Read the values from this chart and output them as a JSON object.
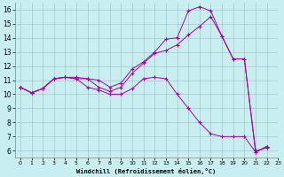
{
  "xlabel": "Windchill (Refroidissement éolien,°C)",
  "xlim": [
    -0.5,
    23
  ],
  "ylim": [
    5.5,
    16.5
  ],
  "xticks": [
    0,
    1,
    2,
    3,
    4,
    5,
    6,
    7,
    8,
    9,
    10,
    11,
    12,
    13,
    14,
    15,
    16,
    17,
    18,
    19,
    20,
    21,
    22,
    23
  ],
  "yticks": [
    6,
    7,
    8,
    9,
    10,
    11,
    12,
    13,
    14,
    15,
    16
  ],
  "bg_color": "#c8eef0",
  "line_color": "#aa00aa",
  "line1_x": [
    0,
    1,
    2,
    3,
    4,
    5,
    6,
    7,
    8,
    9,
    10,
    11,
    12,
    13,
    14,
    15,
    16,
    17,
    18,
    19,
    20,
    21,
    22
  ],
  "line1_y": [
    10.5,
    10.1,
    10.4,
    11.1,
    11.2,
    11.1,
    10.5,
    10.3,
    10.0,
    10.0,
    10.4,
    11.1,
    11.2,
    11.1,
    10.0,
    9.0,
    8.0,
    7.2,
    7.0,
    7.0,
    7.0,
    5.9,
    6.3
  ],
  "line2_x": [
    0,
    1,
    2,
    3,
    4,
    5,
    6,
    7,
    8,
    9,
    10,
    11,
    12,
    13,
    14,
    15,
    16,
    17,
    18,
    19,
    20,
    21,
    22
  ],
  "line2_y": [
    10.5,
    10.1,
    10.4,
    11.1,
    11.2,
    11.1,
    11.1,
    11.0,
    10.5,
    10.8,
    11.8,
    12.3,
    13.0,
    13.9,
    14.0,
    15.9,
    16.2,
    15.9,
    14.1,
    12.5,
    12.5,
    5.9,
    6.3
  ],
  "line3_x": [
    0,
    1,
    2,
    3,
    4,
    5,
    6,
    7,
    8,
    9,
    10,
    11,
    12,
    13,
    14,
    15,
    16,
    17,
    18,
    19,
    20,
    21,
    22
  ],
  "line3_y": [
    10.5,
    10.1,
    10.4,
    11.1,
    11.2,
    11.2,
    11.1,
    10.5,
    10.2,
    10.5,
    11.5,
    12.2,
    12.9,
    13.1,
    13.5,
    14.2,
    14.8,
    15.5,
    14.1,
    12.5,
    12.5,
    6.0,
    6.2
  ]
}
